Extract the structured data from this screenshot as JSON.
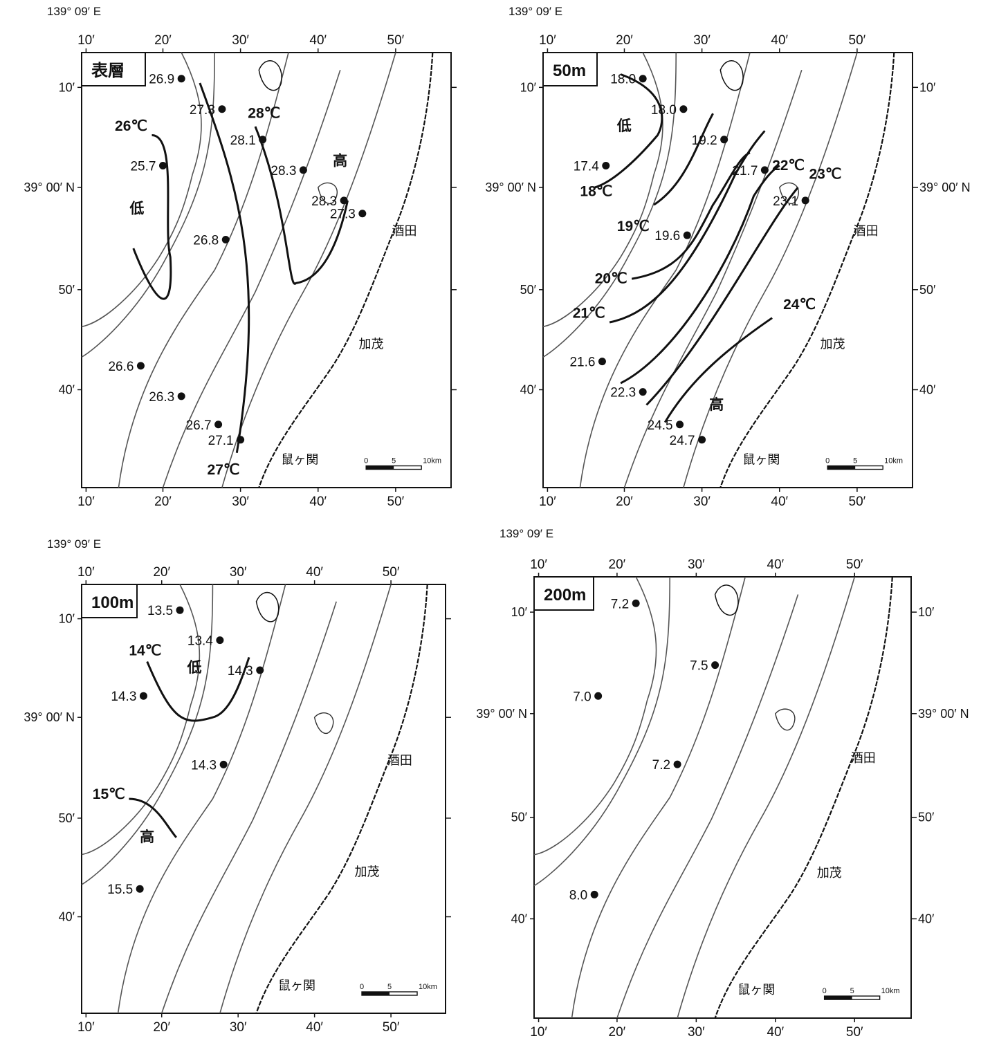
{
  "common": {
    "lon_origin": "139° 09′ E",
    "lon_ticks": [
      "10′",
      "20′",
      "30′",
      "40′",
      "50′"
    ],
    "lat_ticks": [
      "10′",
      "39° 00′ N",
      "50′",
      "40′"
    ],
    "places": {
      "sakata": "酒田",
      "kamo": "加茂",
      "nezugaseki": "鼠ヶ関"
    },
    "scale": [
      "0",
      "5",
      "10km"
    ]
  },
  "panels": [
    {
      "label": "表層",
      "stations": [
        {
          "v": "26.9"
        },
        {
          "v": "27.3"
        },
        {
          "v": "28.1"
        },
        {
          "v": "25.7"
        },
        {
          "v": "28.3"
        },
        {
          "v": "28.3"
        },
        {
          "v": "27.3"
        },
        {
          "v": "26.8"
        },
        {
          "v": "26.6"
        },
        {
          "v": "26.3"
        },
        {
          "v": "26.7"
        },
        {
          "v": "27.1"
        }
      ],
      "isotherms": [
        "26℃",
        "28℃",
        "27℃"
      ],
      "zones": [
        "低",
        "高"
      ]
    },
    {
      "label": "50m",
      "stations": [
        {
          "v": "18.0"
        },
        {
          "v": "18.0"
        },
        {
          "v": "19.2"
        },
        {
          "v": "17.4"
        },
        {
          "v": "21.7"
        },
        {
          "v": "23.1"
        },
        {
          "v": "19.6"
        },
        {
          "v": "21.6"
        },
        {
          "v": "22.3"
        },
        {
          "v": "24.5"
        },
        {
          "v": "24.7"
        }
      ],
      "isotherms": [
        "18℃",
        "19℃",
        "20℃",
        "21℃",
        "22℃",
        "23℃",
        "24℃"
      ],
      "zones": [
        "低",
        "高"
      ]
    },
    {
      "label": "100m",
      "stations": [
        {
          "v": "13.5"
        },
        {
          "v": "13.4"
        },
        {
          "v": "14.3"
        },
        {
          "v": "14.3"
        },
        {
          "v": "14.3"
        },
        {
          "v": "15.5"
        }
      ],
      "isotherms": [
        "14℃",
        "15℃"
      ],
      "zones": [
        "低",
        "高"
      ]
    },
    {
      "label": "200m",
      "stations": [
        {
          "v": "7.2"
        },
        {
          "v": "7.5"
        },
        {
          "v": "7.0"
        },
        {
          "v": "7.2"
        },
        {
          "v": "8.0"
        }
      ],
      "isotherms": [],
      "zones": []
    }
  ]
}
